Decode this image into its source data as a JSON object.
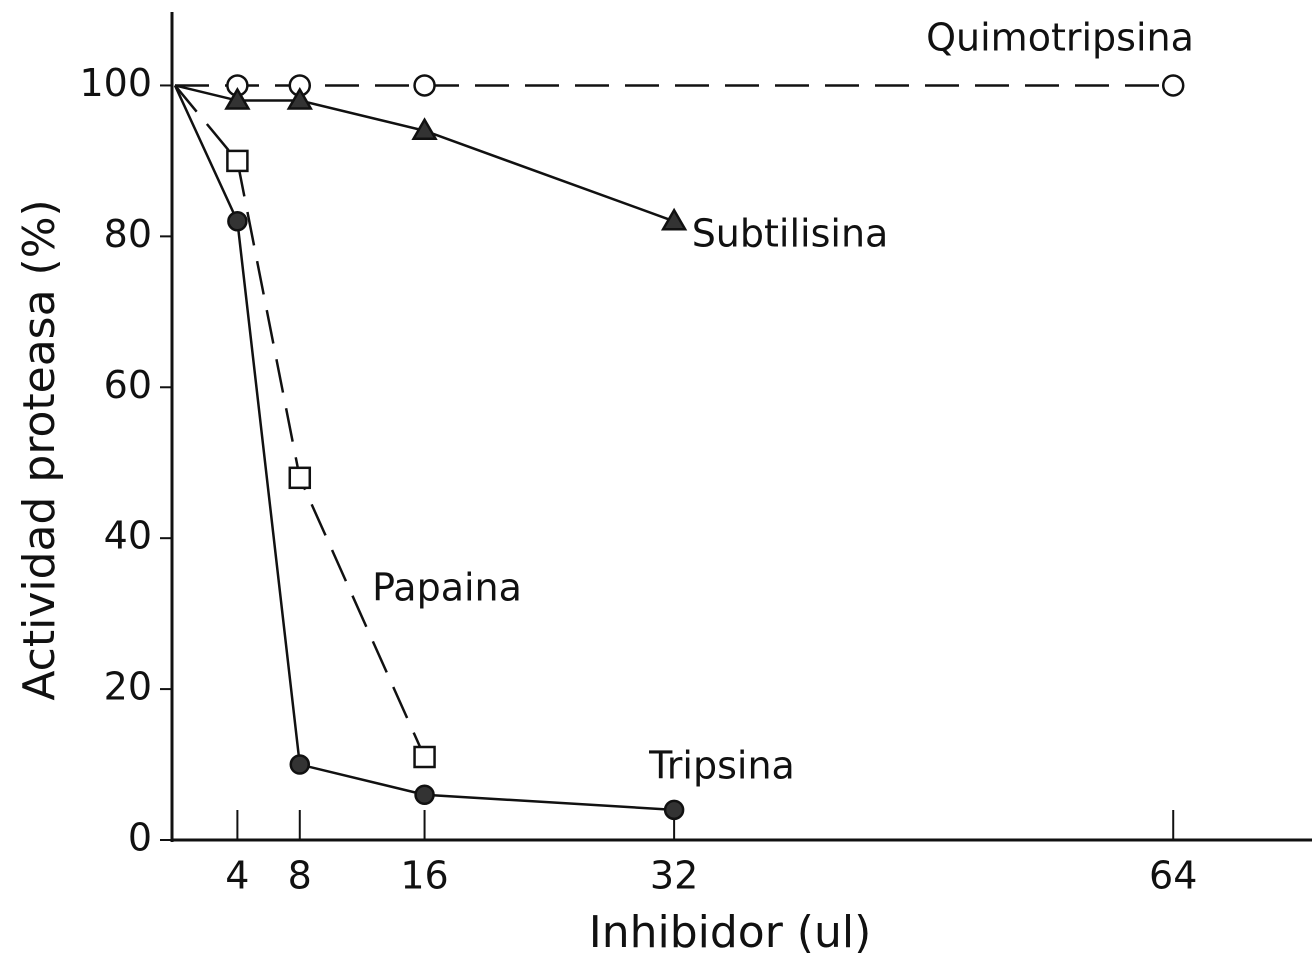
{
  "chart_data": {
    "type": "line",
    "x_label": "Inhibidor (ul)",
    "y_label": "Actividad proteasa (%)",
    "xlim": [
      0,
      72
    ],
    "ylim": [
      0,
      110
    ],
    "xticks": [
      4,
      8,
      16,
      32,
      64
    ],
    "yticks": [
      0,
      20,
      40,
      60,
      80,
      100
    ],
    "series": [
      {
        "name": "Quimotripsina",
        "color": "#111111",
        "dash": true,
        "marker": "open-circle",
        "x": [
          0,
          4,
          8,
          16,
          64
        ],
        "values": [
          100,
          100,
          100,
          100,
          100
        ]
      },
      {
        "name": "Subtilisina",
        "color": "#111111",
        "dash": false,
        "marker": "triangle",
        "x": [
          0,
          4,
          8,
          16,
          32
        ],
        "values": [
          100,
          98,
          98,
          94,
          82
        ]
      },
      {
        "name": "Papaina",
        "color": "#111111",
        "dash": true,
        "marker": "open-square",
        "x": [
          0,
          4,
          8,
          16
        ],
        "values": [
          100,
          90,
          48,
          11
        ]
      },
      {
        "name": "Tripsina",
        "color": "#111111",
        "dash": false,
        "marker": "filled-circle",
        "x": [
          0,
          4,
          8,
          16,
          32
        ],
        "values": [
          100,
          82,
          10,
          6,
          4
        ]
      }
    ]
  }
}
